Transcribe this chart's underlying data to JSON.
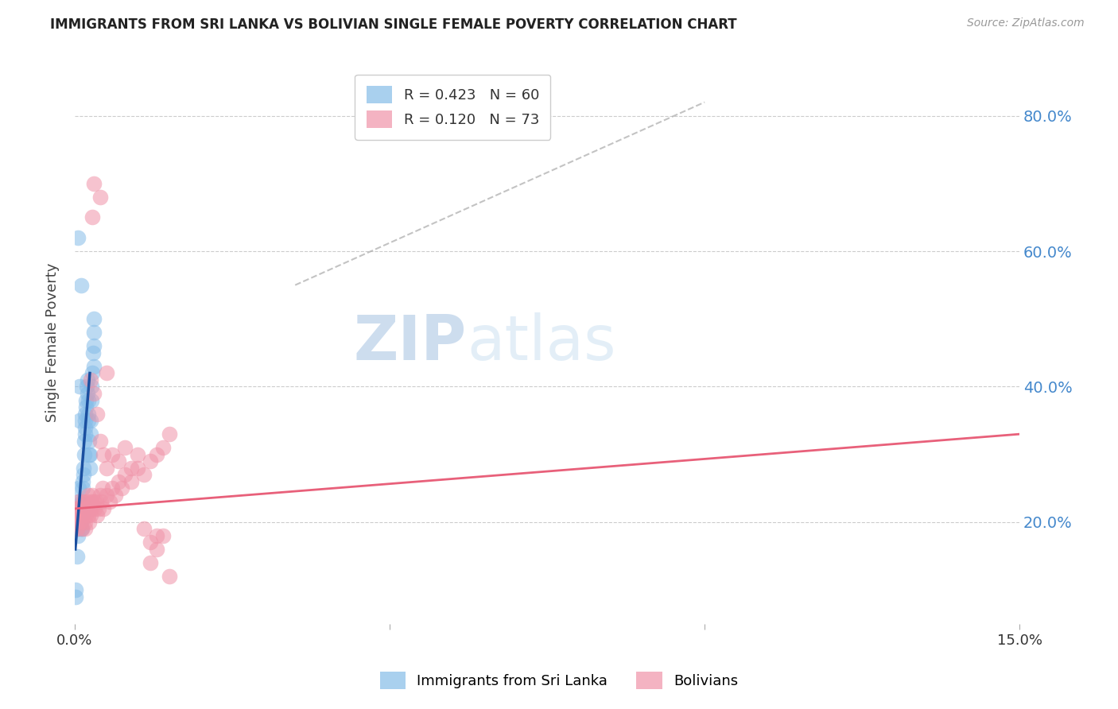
{
  "title": "IMMIGRANTS FROM SRI LANKA VS BOLIVIAN SINGLE FEMALE POVERTY CORRELATION CHART",
  "source": "Source: ZipAtlas.com",
  "ylabel": "Single Female Poverty",
  "y_ticks": [
    0.2,
    0.4,
    0.6,
    0.8
  ],
  "y_tick_labels": [
    "20.0%",
    "40.0%",
    "60.0%",
    "80.0%"
  ],
  "xlim": [
    0.0,
    0.15
  ],
  "ylim": [
    0.05,
    0.88
  ],
  "legend_r1": "R = 0.423",
  "legend_n1": "N = 60",
  "legend_r2": "R = 0.120",
  "legend_n2": "N = 73",
  "color_blue": "#85bce8",
  "color_pink": "#f093a8",
  "color_line_blue": "#1a4fa0",
  "color_line_pink": "#e8607a",
  "color_ticks_right": "#4488cc",
  "watermark_zip": "ZIP",
  "watermark_atlas": "atlas",
  "sri_lanka_x": [
    0.0002,
    0.0003,
    0.0004,
    0.0005,
    0.0005,
    0.0006,
    0.0006,
    0.0007,
    0.0007,
    0.0008,
    0.0008,
    0.0009,
    0.0009,
    0.001,
    0.001,
    0.001,
    0.0011,
    0.0011,
    0.0012,
    0.0012,
    0.0013,
    0.0013,
    0.0014,
    0.0014,
    0.0015,
    0.0015,
    0.0016,
    0.0016,
    0.0017,
    0.0017,
    0.0018,
    0.0018,
    0.0019,
    0.002,
    0.002,
    0.0021,
    0.0022,
    0.0022,
    0.0023,
    0.0023,
    0.0024,
    0.0024,
    0.0025,
    0.0025,
    0.0026,
    0.0027,
    0.0028,
    0.0029,
    0.003,
    0.003,
    0.0031,
    0.0031,
    0.0001,
    0.0001,
    0.001,
    0.0005,
    0.0008,
    0.0008,
    0.0004,
    0.0006
  ],
  "sri_lanka_y": [
    0.21,
    0.2,
    0.19,
    0.22,
    0.18,
    0.21,
    0.23,
    0.2,
    0.19,
    0.22,
    0.21,
    0.2,
    0.22,
    0.19,
    0.21,
    0.2,
    0.22,
    0.19,
    0.21,
    0.23,
    0.25,
    0.26,
    0.28,
    0.27,
    0.3,
    0.32,
    0.33,
    0.35,
    0.34,
    0.36,
    0.37,
    0.38,
    0.4,
    0.39,
    0.41,
    0.38,
    0.35,
    0.36,
    0.3,
    0.32,
    0.28,
    0.3,
    0.33,
    0.35,
    0.38,
    0.4,
    0.42,
    0.45,
    0.43,
    0.46,
    0.48,
    0.5,
    0.09,
    0.1,
    0.55,
    0.62,
    0.35,
    0.4,
    0.15,
    0.25
  ],
  "bolivian_x": [
    0.0002,
    0.0003,
    0.0004,
    0.0005,
    0.0006,
    0.0007,
    0.0008,
    0.0009,
    0.001,
    0.0011,
    0.0012,
    0.0013,
    0.0014,
    0.0015,
    0.0016,
    0.0017,
    0.0018,
    0.0019,
    0.002,
    0.0021,
    0.0022,
    0.0023,
    0.0024,
    0.0025,
    0.0026,
    0.0027,
    0.0028,
    0.003,
    0.0032,
    0.0034,
    0.0036,
    0.0038,
    0.004,
    0.0042,
    0.0044,
    0.0046,
    0.005,
    0.0055,
    0.006,
    0.0065,
    0.007,
    0.0075,
    0.008,
    0.009,
    0.01,
    0.011,
    0.012,
    0.013,
    0.014,
    0.015,
    0.013,
    0.012,
    0.011,
    0.0025,
    0.003,
    0.0035,
    0.004,
    0.0045,
    0.005,
    0.006,
    0.007,
    0.008,
    0.009,
    0.01,
    0.012,
    0.013,
    0.014,
    0.0001,
    0.015,
    0.0028,
    0.004,
    0.003,
    0.005
  ],
  "bolivian_y": [
    0.2,
    0.22,
    0.19,
    0.21,
    0.23,
    0.2,
    0.22,
    0.21,
    0.2,
    0.19,
    0.22,
    0.21,
    0.23,
    0.22,
    0.2,
    0.19,
    0.21,
    0.23,
    0.22,
    0.24,
    0.21,
    0.2,
    0.22,
    0.21,
    0.23,
    0.22,
    0.24,
    0.23,
    0.22,
    0.23,
    0.21,
    0.22,
    0.24,
    0.23,
    0.25,
    0.22,
    0.24,
    0.23,
    0.25,
    0.24,
    0.26,
    0.25,
    0.27,
    0.26,
    0.28,
    0.27,
    0.29,
    0.3,
    0.31,
    0.33,
    0.18,
    0.17,
    0.19,
    0.41,
    0.39,
    0.36,
    0.32,
    0.3,
    0.28,
    0.3,
    0.29,
    0.31,
    0.28,
    0.3,
    0.14,
    0.16,
    0.18,
    0.22,
    0.12,
    0.65,
    0.68,
    0.7,
    0.42
  ],
  "sl_line_x": [
    0.0001,
    0.0024
  ],
  "sl_line_y": [
    0.16,
    0.42
  ],
  "bo_line_x": [
    0.0001,
    0.15
  ],
  "bo_line_y": [
    0.22,
    0.33
  ],
  "dash_line_x": [
    0.035,
    0.1
  ],
  "dash_line_y": [
    0.55,
    0.82
  ]
}
